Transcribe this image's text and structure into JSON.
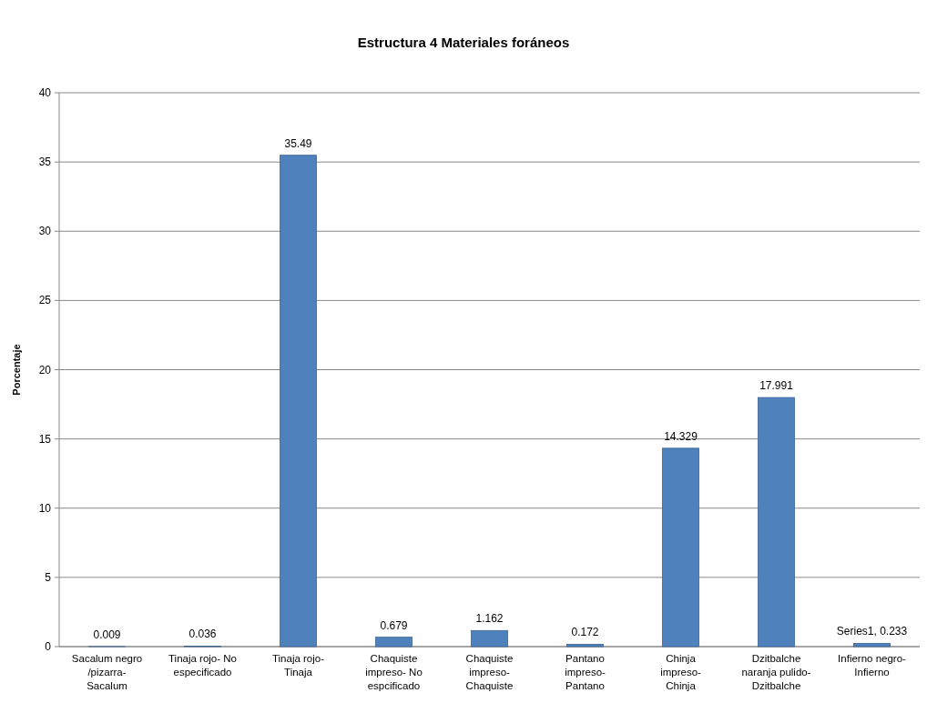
{
  "chart_data": {
    "type": "bar",
    "title": "Estructura 4   Materiales foráneos",
    "ylabel": "Porcentaje",
    "categories": [
      "Sacalum negro\n/pizarra-\nSacalum",
      "Tinaja rojo- No\nespecificado",
      "Tinaja rojo-\nTinaja",
      "Chaquiste\nimpreso- No\nespcificado",
      "Chaquiste\nimpreso-\nChaquiste",
      "Pantano\nimpreso-\nPantano",
      "Chinja\nimpreso-\nChinja",
      "Dzitbalche\nnaranja pulido-\nDzitbalche",
      "Infierno negro-\nInfierno"
    ],
    "values": [
      0.009,
      0.036,
      35.49,
      0.679,
      1.162,
      0.172,
      14.329,
      17.991,
      0.233
    ],
    "value_labels": [
      "0.009",
      "0.036",
      "35.49",
      "0.679",
      "1.162",
      "0.172",
      "14.329",
      "17.991",
      "Series1, 0.233"
    ],
    "color": "#4f81bd",
    "ylim": [
      0,
      40
    ],
    "yticks": [
      0,
      5,
      10,
      15,
      20,
      25,
      30,
      35,
      40
    ],
    "grid": "y"
  }
}
